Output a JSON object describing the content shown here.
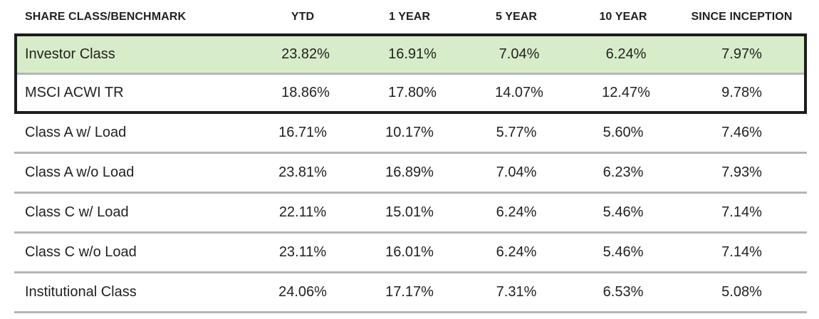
{
  "table": {
    "columns": [
      "SHARE CLASS/BENCHMARK",
      "YTD",
      "1 YEAR",
      "5 YEAR",
      "10 YEAR",
      "SINCE INCEPTION"
    ],
    "rows": [
      {
        "label": "Investor Class",
        "values": [
          "23.82%",
          "16.91%",
          "7.04%",
          "6.24%",
          "7.97%"
        ],
        "highlight": true,
        "boxed": true
      },
      {
        "label": "MSCI ACWI TR",
        "values": [
          "18.86%",
          "17.80%",
          "14.07%",
          "12.47%",
          "9.78%"
        ],
        "highlight": false,
        "boxed": true
      },
      {
        "label": "Class A w/ Load",
        "values": [
          "16.71%",
          "10.17%",
          "5.77%",
          "5.60%",
          "7.46%"
        ],
        "highlight": false,
        "boxed": false
      },
      {
        "label": "Class A w/o Load",
        "values": [
          "23.81%",
          "16.89%",
          "7.04%",
          "6.23%",
          "7.93%"
        ],
        "highlight": false,
        "boxed": false
      },
      {
        "label": "Class C w/ Load",
        "values": [
          "22.11%",
          "15.01%",
          "6.24%",
          "5.46%",
          "7.14%"
        ],
        "highlight": false,
        "boxed": false
      },
      {
        "label": "Class C w/o Load",
        "values": [
          "23.11%",
          "16.01%",
          "6.24%",
          "5.46%",
          "7.14%"
        ],
        "highlight": false,
        "boxed": false
      },
      {
        "label": "Institutional Class",
        "values": [
          "24.06%",
          "17.17%",
          "7.31%",
          "6.53%",
          "5.08%"
        ],
        "highlight": false,
        "boxed": false
      }
    ],
    "colors": {
      "highlight_bg": "#d7edc9",
      "box_border": "#1d1d1b",
      "divider": "#b5b5b5",
      "text": "#242122"
    }
  }
}
